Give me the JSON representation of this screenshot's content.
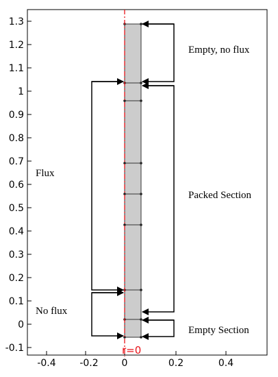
{
  "figure": {
    "x_ticks": [
      "-0.4",
      "-0.2",
      "0",
      "0.2",
      "0.4"
    ],
    "y_ticks": [
      "-0.1",
      "0",
      "0.1",
      "0.2",
      "0.3",
      "0.4",
      "0.5",
      "0.6",
      "0.7",
      "0.8",
      "0.9",
      "1",
      "1.1",
      "1.2",
      "1.3"
    ],
    "origin_label": "r=0",
    "labels": {
      "empty_no_flux": "Empty, no flux",
      "flux": "Flux",
      "packed_section": "Packed Section",
      "no_flux": "No flux",
      "empty_section": "Empty Section"
    },
    "colors": {
      "column_fill": "#cccccc",
      "axis_line": "#e8151b",
      "frame": "#000000"
    }
  }
}
